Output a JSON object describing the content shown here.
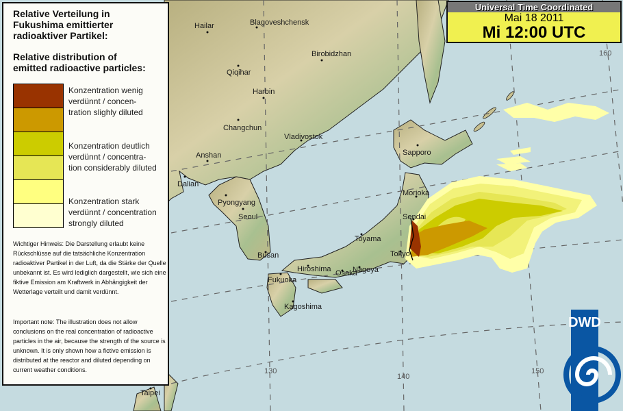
{
  "legend": {
    "title_de": [
      "Relative Verteilung in",
      "Fukushima emittierter",
      "radioaktiver Partikel:"
    ],
    "title_en": [
      "Relative distribution of",
      "emitted radioactive particles:"
    ],
    "classes": [
      {
        "color": "#993300",
        "label": [
          "Konzentration wenig",
          "verdünnt / concen-",
          "tration slighly diluted"
        ]
      },
      {
        "color": "#cc9900"
      },
      {
        "color": "#cccc00",
        "label": [
          "Konzentration deutlich",
          "verdünnt / concentra-",
          "tion considerably diluted"
        ]
      },
      {
        "color": "#e6e655"
      },
      {
        "color": "#ffff80",
        "label": [
          "Konzentration stark",
          "verdünnt / concentration",
          "strongly diluted"
        ]
      },
      {
        "color": "#ffffd0"
      }
    ],
    "note_de": "Wichtiger Hinweis: Die Darstellung erlaubt keine Rückschlüsse auf die tatsächliche Konzentration radioaktiver Partikel in der Luft, da die Stärke der Quelle unbekannt ist. Es wird lediglich dargestellt, wie sich eine fiktive Emission am Kraftwerk in Abhängigkeit der Wetterlage verteilt und damit verdünnt.",
    "note_en": "Important note: The illustration does not allow conclusions on the real concentration of radioactive particles in the air, because the strength of the source is unknown. It is only shown how a fictive emission is distributed at the reactor and diluted depending on current weather conditions."
  },
  "timebox": {
    "header": "Universal Time Coordinated",
    "date": "Mai 18 2011",
    "time": "Mi 12:00 UTC"
  },
  "map": {
    "cities": [
      "Hailar",
      "Blagoveshchensk",
      "Birobidzhan",
      "Qiqihar",
      "Harbin",
      "Changchun",
      "Vladivostok",
      "Anshan",
      "Dalian",
      "Pyongyang",
      "Seoul",
      "Busan",
      "Fukuoka",
      "Hiroshima",
      "Osaka",
      "Nagoya",
      "Toyama",
      "Tokyo",
      "Sendai",
      "Morioka",
      "Sapporo",
      "Kagoshima",
      "Taipei"
    ],
    "longitude_labels": [
      "130",
      "140",
      "150",
      "160"
    ],
    "sea_color": "#c5dbe0",
    "land_color": "#c8c090"
  },
  "logo": {
    "text": "DWD",
    "color": "#0a56a3"
  }
}
